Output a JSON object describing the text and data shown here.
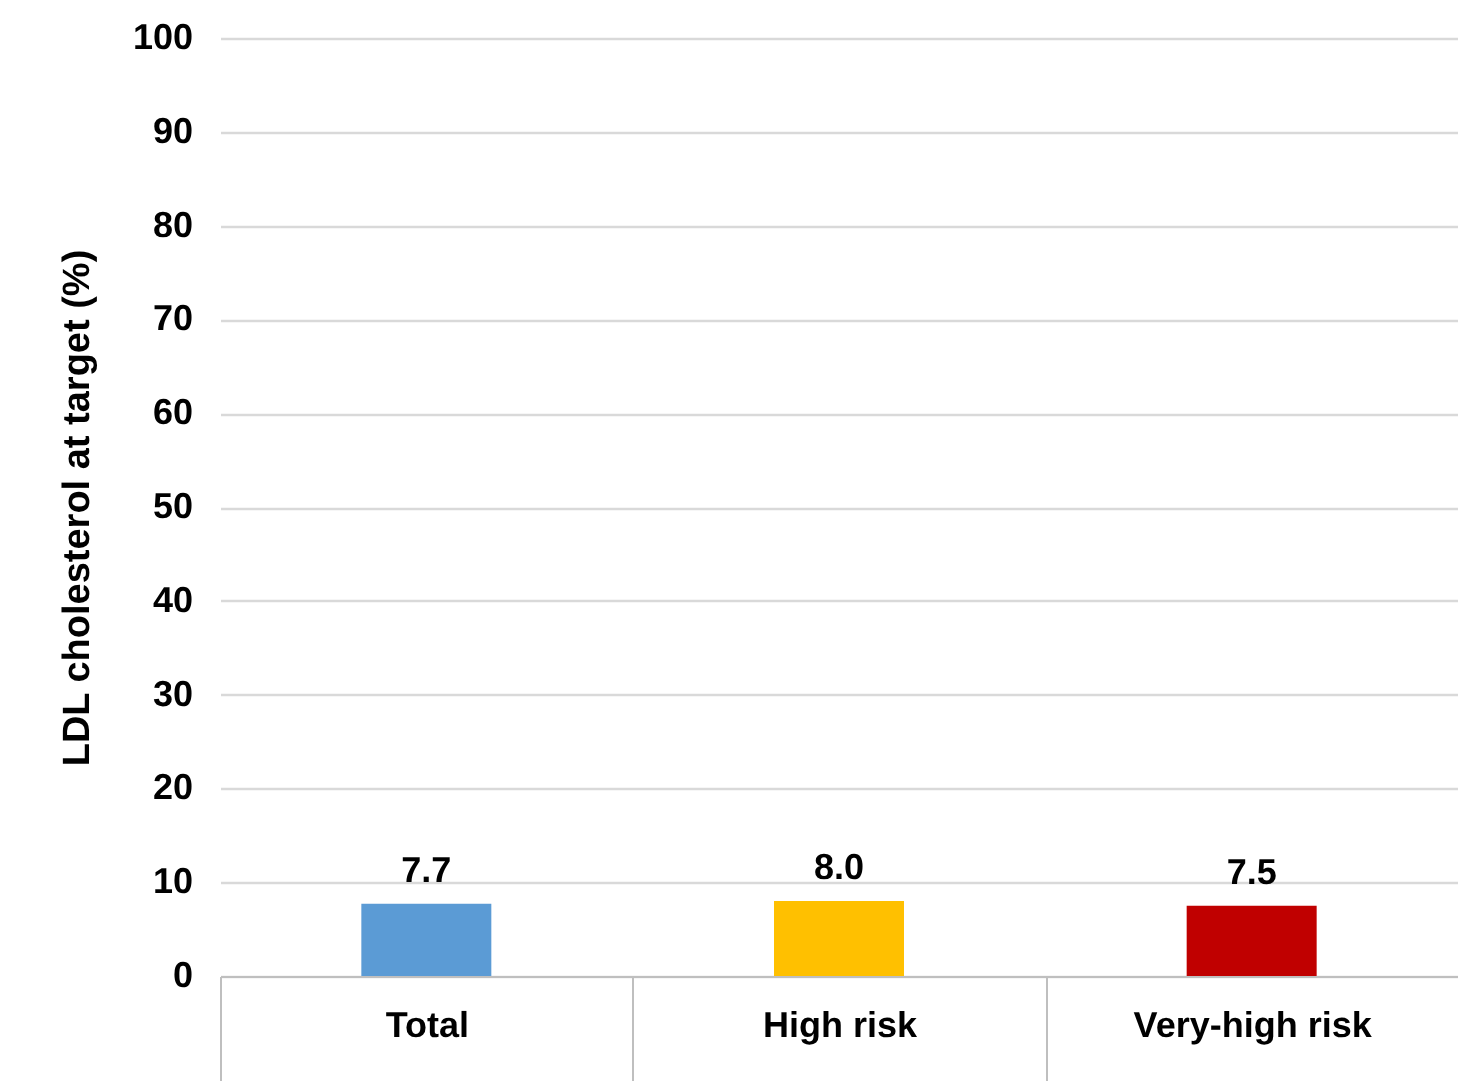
{
  "chart_data": {
    "type": "bar",
    "ylabel": "LDL cholesterol at target (%)",
    "categories": [
      "Total",
      "High risk",
      "Very-high risk"
    ],
    "values": [
      7.7,
      8.0,
      7.5
    ],
    "colors": [
      "#5b9bd5",
      "#ffc000",
      "#c00000"
    ],
    "value_labels": [
      "7.7",
      "8.0",
      "7.5"
    ],
    "ylim": [
      0,
      100
    ],
    "yticks": [
      0,
      10,
      20,
      30,
      40,
      50,
      60,
      70,
      80,
      90,
      100
    ],
    "grid": "y",
    "legend": false
  }
}
